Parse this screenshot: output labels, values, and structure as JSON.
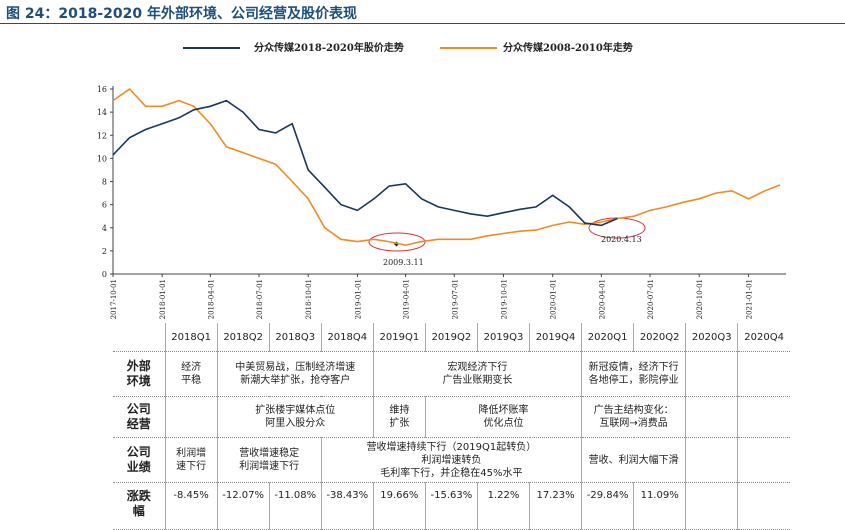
{
  "title": "图 24：2018-2020 年外部环境、公司经营及股价表现",
  "chart_data": {
    "type": "line",
    "x": [
      "2017-10-01",
      "2017-11-01",
      "2017-12-01",
      "2018-01-01",
      "2018-02-01",
      "2018-03-01",
      "2018-04-01",
      "2018-05-01",
      "2018-06-01",
      "2018-07-01",
      "2018-08-01",
      "2018-09-01",
      "2018-10-01",
      "2018-11-01",
      "2018-12-01",
      "2019-01-01",
      "2019-02-01",
      "2019-03-01",
      "2019-04-01",
      "2019-05-01",
      "2019-06-01",
      "2019-07-01",
      "2019-08-01",
      "2019-09-01",
      "2019-10-01",
      "2019-11-01",
      "2019-12-01",
      "2020-01-01",
      "2020-02-01",
      "2020-03-01",
      "2020-04-01",
      "2020-05-01",
      "2020-06-01",
      "2020-07-01",
      "2020-08-01",
      "2020-09-01",
      "2020-10-01",
      "2020-11-01",
      "2020-12-01",
      "2021-01-01",
      "2021-02-01",
      "2021-03-01"
    ],
    "series": [
      {
        "name": "分众传媒2018-2020年股价走势",
        "color": "#17375e",
        "values": [
          10.3,
          11.8,
          12.5,
          13.0,
          13.5,
          14.2,
          14.5,
          15.0,
          14.0,
          12.5,
          12.2,
          13.0,
          9.0,
          7.5,
          6.0,
          5.5,
          6.5,
          7.6,
          7.8,
          6.5,
          5.8,
          5.5,
          5.2,
          5.0,
          5.3,
          5.6,
          5.8,
          6.8,
          5.8,
          4.4,
          4.2,
          4.8,
          null,
          null,
          null,
          null,
          null,
          null,
          null,
          null,
          null,
          null
        ]
      },
      {
        "name": "分众传媒2008-2010年走势",
        "color": "#f08a24",
        "values": [
          15.0,
          16.0,
          14.5,
          14.5,
          15.0,
          14.5,
          13.0,
          11.0,
          10.5,
          10.0,
          9.5,
          8.0,
          6.5,
          4.0,
          3.0,
          2.8,
          3.0,
          2.8,
          2.5,
          2.8,
          3.0,
          3.0,
          3.0,
          3.3,
          3.5,
          3.7,
          3.8,
          4.2,
          4.5,
          4.3,
          4.5,
          4.8,
          5.0,
          5.5,
          5.8,
          6.2,
          6.5,
          7.0,
          7.2,
          6.5,
          7.2,
          7.7
        ]
      }
    ],
    "xlim": [
      "2017-10-01",
      "2021-03-01"
    ],
    "xticks": [
      "2017-10-01",
      "2018-01-01",
      "2018-04-01",
      "2018-07-01",
      "2018-10-01",
      "2019-01-01",
      "2019-04-01",
      "2019-07-01",
      "2019-10-01",
      "2020-01-01",
      "2020-04-01",
      "2020-07-01",
      "2020-10-01",
      "2021-01-01"
    ],
    "ylim": [
      0,
      16
    ],
    "yticks": [
      0,
      2,
      4,
      6,
      8,
      10,
      12,
      14,
      16
    ],
    "annotations": [
      "2009.3.11",
      "2020.4.13"
    ]
  },
  "table": {
    "header": [
      "2018Q1",
      "2018Q2",
      "2018Q3",
      "2018Q4",
      "2019Q1",
      "2019Q2",
      "2019Q3",
      "2019Q4",
      "2020Q1",
      "2020Q2",
      "2020Q3",
      "2020Q4"
    ],
    "rows": [
      {
        "label": [
          "外部",
          "环境"
        ],
        "cells": [
          [
            "经济",
            "平稳"
          ],
          [
            "中美贸易战，压制经济增速",
            "新潮大举扩张，抢夺客户"
          ],
          [
            "宏观经济下行",
            "广告业账期变长"
          ],
          [
            "新冠疫情，经济下行",
            "各地停工，影院停业"
          ]
        ]
      },
      {
        "label": [
          "公司",
          "经营"
        ],
        "cells": [
          [
            "扩张楼宇媒体点位",
            "阿里入股分众"
          ],
          [
            "维持",
            "扩张"
          ],
          [
            "降低坏账率",
            "优化点位"
          ],
          [
            "广告主结构变化：",
            "互联网→消费品"
          ]
        ]
      },
      {
        "label": [
          "公司",
          "业绩"
        ],
        "cells": [
          [
            "利润增",
            "速下行"
          ],
          [
            "营收增速稳定",
            "利润增速下行"
          ],
          [
            "营收增速持续下行（2019Q1起转负）",
            "利润增速转负",
            "毛利率下行，并企稳在45%水平"
          ],
          [
            "营收、利润大幅下滑"
          ]
        ]
      },
      {
        "label": [
          "涨跌",
          "幅"
        ],
        "cells": [
          "-8.45%",
          "-12.07%",
          "-11.08%",
          "-38.43%",
          "19.66%",
          "-15.63%",
          "1.22%",
          "17.23%",
          "-29.84%",
          "11.09%"
        ]
      }
    ]
  }
}
